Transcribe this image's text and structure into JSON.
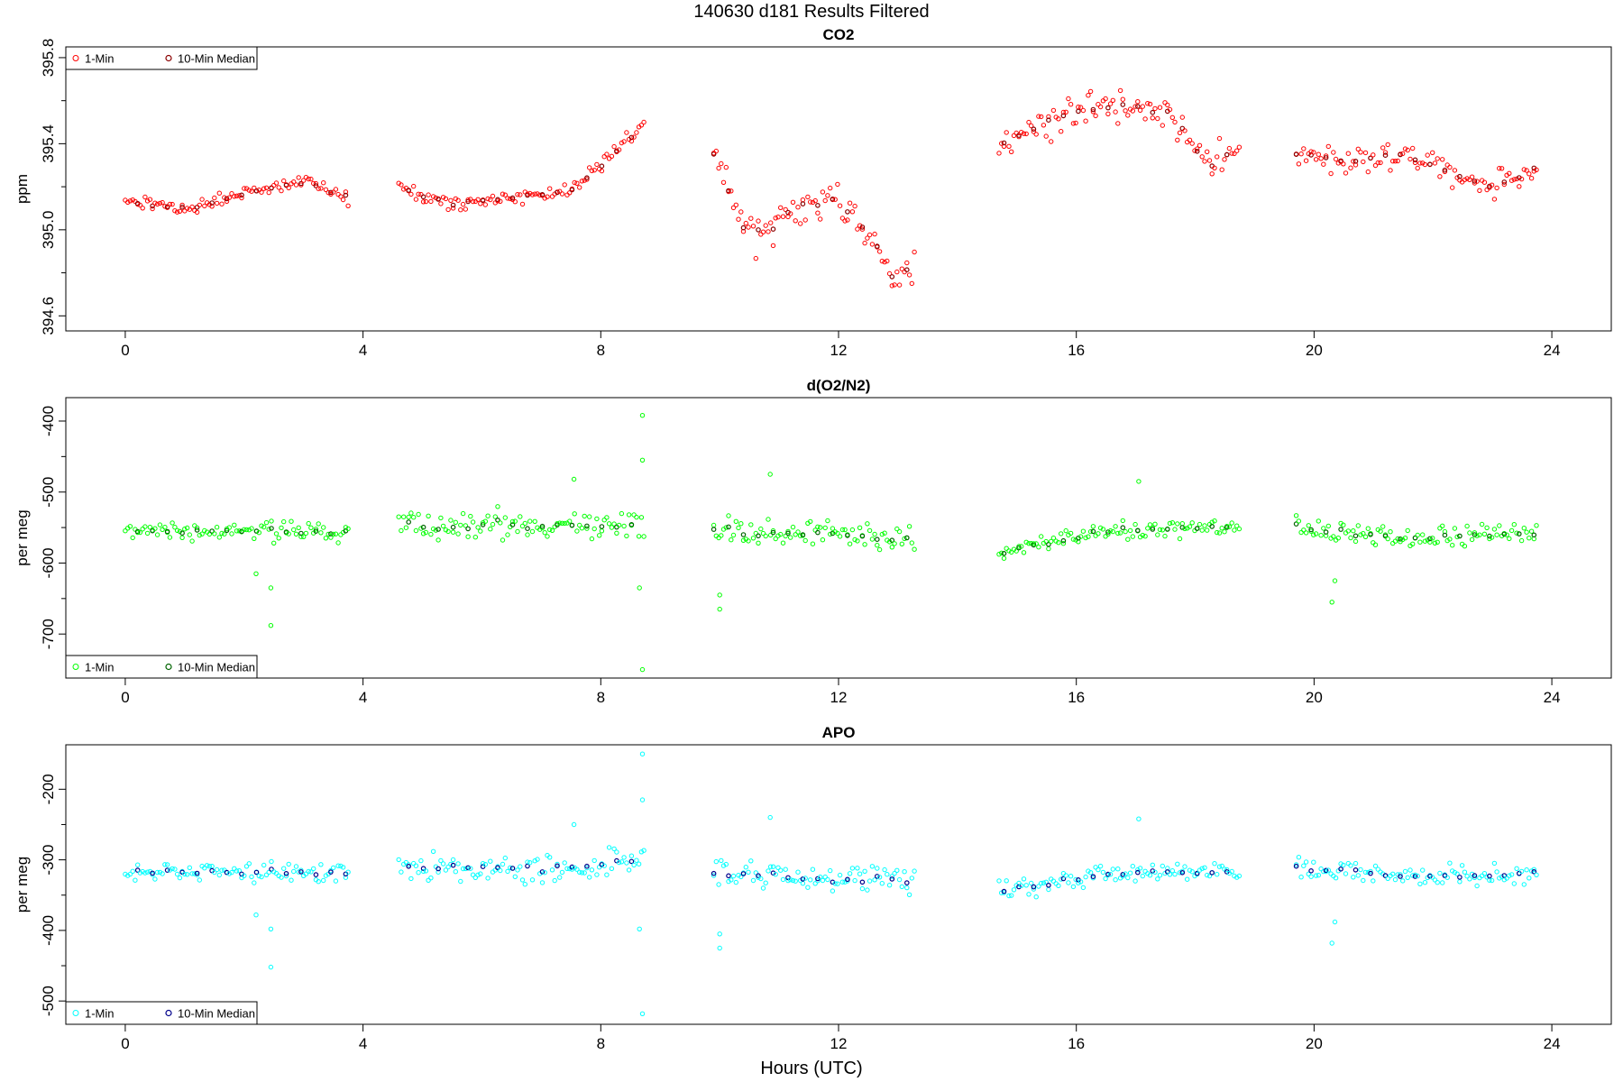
{
  "figure": {
    "title": "140630   d181   Results Filtered",
    "xlabel": "Hours (UTC)"
  },
  "chart_data": [
    {
      "type": "scatter",
      "title": "CO2",
      "ylabel": "ppm",
      "xlim": [
        -1.0,
        25.0
      ],
      "ylim": [
        394.53,
        395.85
      ],
      "xticks": [
        0,
        4,
        8,
        12,
        16,
        20,
        24
      ],
      "yticks": [
        394.6,
        395.0,
        395.4,
        395.8
      ],
      "ytick_labels": [
        "394.6",
        "395.0",
        "395.4",
        "395.8"
      ],
      "legend": {
        "position": "top-left",
        "entries": [
          "1-Min",
          "10-Min Median"
        ]
      },
      "colors": {
        "one_min": "#ff0000",
        "median": "#8b0000"
      },
      "series_config": {
        "segments": [
          {
            "x": [
              0.0,
              1.0,
              2.0,
              3.0,
              3.75
            ],
            "y": [
              395.13,
              395.1,
              395.17,
              395.22,
              395.15
            ],
            "noise": 0.03
          },
          {
            "x": [
              4.6,
              5.5,
              6.5,
              7.5,
              8.2,
              8.75
            ],
            "y": [
              395.2,
              395.12,
              395.15,
              395.18,
              395.35,
              395.5
            ],
            "noise": 0.03
          },
          {
            "x": [
              9.9,
              10.5,
              11.2,
              12.0,
              12.6,
              13.0,
              13.3
            ],
            "y": [
              395.35,
              394.95,
              395.1,
              395.15,
              394.95,
              394.75,
              394.85
            ],
            "noise": 0.08
          },
          {
            "x": [
              14.7,
              15.5,
              16.5,
              17.5,
              18.2,
              18.75
            ],
            "y": [
              395.4,
              395.5,
              395.58,
              395.55,
              395.3,
              395.38
            ],
            "noise": 0.07
          },
          {
            "x": [
              19.7,
              20.5,
              21.5,
              22.5,
              23.0,
              23.75
            ],
            "y": [
              395.35,
              395.32,
              395.35,
              395.25,
              395.2,
              395.3
            ],
            "noise": 0.06
          }
        ]
      }
    },
    {
      "type": "scatter",
      "title": "d(O2/N2)",
      "ylabel": "per meg",
      "xlim": [
        -1.0,
        25.0
      ],
      "ylim": [
        -762.0,
        -367.0
      ],
      "xticks": [
        0,
        4,
        8,
        12,
        16,
        20,
        24
      ],
      "yticks": [
        -700,
        -600,
        -500,
        -400
      ],
      "ytick_labels": [
        "-700",
        "-600",
        "-500",
        "-400"
      ],
      "legend": {
        "position": "bottom-left",
        "entries": [
          "1-Min",
          "10-Min Median"
        ]
      },
      "colors": {
        "one_min": "#00ff00",
        "median": "#006400"
      },
      "series_config": {
        "segments": [
          {
            "x": [
              0.0,
              2.0,
              3.75
            ],
            "y": [
              -555,
              -555,
              -557
            ],
            "noise": 12
          },
          {
            "x": [
              4.6,
              6.5,
              8.75
            ],
            "y": [
              -545,
              -548,
              -545
            ],
            "noise": 18
          },
          {
            "x": [
              9.9,
              11.5,
              13.3
            ],
            "y": [
              -555,
              -560,
              -565
            ],
            "noise": 18
          },
          {
            "x": [
              14.7,
              16.5,
              18.75
            ],
            "y": [
              -585,
              -555,
              -550
            ],
            "noise": 12
          },
          {
            "x": [
              19.7,
              21.5,
              23.75
            ],
            "y": [
              -550,
              -565,
              -558
            ],
            "noise": 14
          }
        ],
        "outliers": [
          [
            8.7,
            -392
          ],
          [
            8.7,
            -455
          ],
          [
            8.7,
            -750
          ],
          [
            8.65,
            -635
          ],
          [
            2.45,
            -688
          ],
          [
            2.45,
            -635
          ],
          [
            2.2,
            -615
          ],
          [
            10.0,
            -665
          ],
          [
            10.0,
            -645
          ],
          [
            20.3,
            -655
          ],
          [
            20.35,
            -625
          ],
          [
            17.05,
            -485
          ],
          [
            10.85,
            -475
          ],
          [
            7.55,
            -482
          ]
        ]
      }
    },
    {
      "type": "scatter",
      "title": "APO",
      "ylabel": "per meg",
      "xlim": [
        -1.0,
        25.0
      ],
      "ylim": [
        -533.0,
        -137.0
      ],
      "xticks": [
        0,
        4,
        8,
        12,
        16,
        20,
        24
      ],
      "yticks": [
        -500,
        -400,
        -300,
        -200
      ],
      "ytick_labels": [
        "-500",
        "-400",
        "-300",
        "-200"
      ],
      "legend": {
        "position": "bottom-left",
        "entries": [
          "1-Min",
          "10-Min Median"
        ]
      },
      "colors": {
        "one_min": "#00ffff",
        "median": "#00008b"
      },
      "series_config": {
        "segments": [
          {
            "x": [
              0.0,
              2.0,
              3.75
            ],
            "y": [
              -318,
              -318,
              -318
            ],
            "noise": 12
          },
          {
            "x": [
              4.6,
              6.5,
              8.75
            ],
            "y": [
              -310,
              -312,
              -305
            ],
            "noise": 18
          },
          {
            "x": [
              9.9,
              11.5,
              13.3
            ],
            "y": [
              -318,
              -325,
              -330
            ],
            "noise": 18
          },
          {
            "x": [
              14.7,
              16.5,
              18.75
            ],
            "y": [
              -345,
              -320,
              -318
            ],
            "noise": 12
          },
          {
            "x": [
              19.7,
              21.5,
              23.75
            ],
            "y": [
              -310,
              -325,
              -318
            ],
            "noise": 14
          }
        ],
        "outliers": [
          [
            8.7,
            -150
          ],
          [
            8.7,
            -215
          ],
          [
            8.7,
            -518
          ],
          [
            8.65,
            -398
          ],
          [
            2.45,
            -452
          ],
          [
            2.45,
            -398
          ],
          [
            2.2,
            -378
          ],
          [
            10.0,
            -425
          ],
          [
            10.0,
            -405
          ],
          [
            20.3,
            -418
          ],
          [
            20.35,
            -388
          ],
          [
            17.05,
            -242
          ],
          [
            10.85,
            -240
          ],
          [
            7.55,
            -250
          ]
        ]
      }
    }
  ]
}
